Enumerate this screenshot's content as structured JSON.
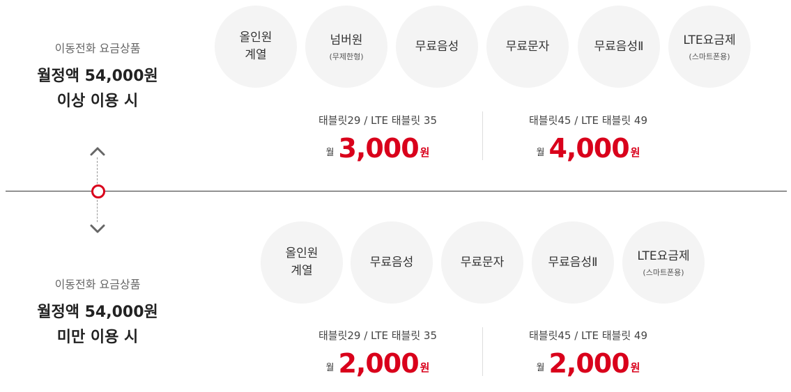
{
  "top": {
    "sub": "이동전화 요금상품",
    "line1": "월정액 54,000원",
    "line2": "이상 이용 시",
    "circles": [
      {
        "title": "올인원\n계열",
        "sub": ""
      },
      {
        "title": "넘버원",
        "sub": "(무제한형)"
      },
      {
        "title": "무료음성",
        "sub": ""
      },
      {
        "title": "무료문자",
        "sub": ""
      },
      {
        "title": "무료음성Ⅱ",
        "sub": ""
      },
      {
        "title": "LTE요금제",
        "sub": "(스마트폰용)"
      }
    ],
    "offers": [
      {
        "label": "태블릿29 / LTE 태블릿 35",
        "month": "월",
        "amount": "3,000",
        "unit": "원"
      },
      {
        "label": "태블릿45 / LTE 태블릿 49",
        "month": "월",
        "amount": "4,000",
        "unit": "원"
      }
    ]
  },
  "bottom": {
    "sub": "이동전화 요금상품",
    "line1": "월정액 54,000원",
    "line2": "미만 이용 시",
    "circles": [
      {
        "title": "올인원\n계열",
        "sub": ""
      },
      {
        "title": "무료음성",
        "sub": ""
      },
      {
        "title": "무료문자",
        "sub": ""
      },
      {
        "title": "무료음성Ⅱ",
        "sub": ""
      },
      {
        "title": "LTE요금제",
        "sub": "(스마트폰용)"
      }
    ],
    "offers": [
      {
        "label": "태블릿29 / LTE 태블릿 35",
        "month": "월",
        "amount": "2,000",
        "unit": "원"
      },
      {
        "label": "태블릿45 / LTE 태블릿 49",
        "month": "월",
        "amount": "2,000",
        "unit": "원"
      }
    ]
  },
  "colors": {
    "accent": "#d9001b",
    "circle_bg": "#f4f4f4"
  },
  "icons": [
    "chevron-up-icon",
    "chevron-down-icon",
    "timeline-dot-icon"
  ]
}
